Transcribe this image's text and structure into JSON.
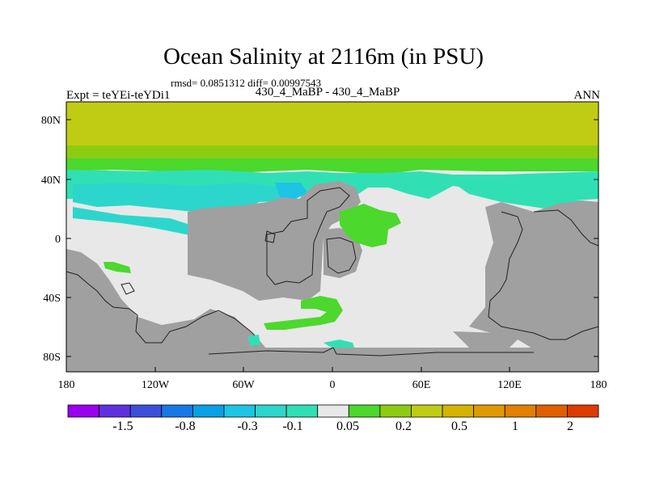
{
  "title": "Ocean Salinity at 2116m (in PSU)",
  "stats": "rmsd= 0.0851312 diff= 0.00997543",
  "left_label": "Expt = teYEi-teYDi1",
  "center_label": "430_4_MaBP - 430_4_MaBP",
  "right_label": "ANN",
  "map": {
    "lat_ticks": [
      "80N",
      "40N",
      "0",
      "40S",
      "80S"
    ],
    "lon_ticks": [
      "180",
      "120W",
      "60W",
      "0",
      "60E",
      "120E",
      "180"
    ],
    "land_color": "#a0a0a0",
    "neutral_color": "#e8e8e8"
  },
  "colorbar": {
    "colors": [
      "#9a00f0",
      "#6030e0",
      "#3c50d8",
      "#1878e6",
      "#0aa0e6",
      "#1ec4e6",
      "#2cd6cc",
      "#30e0b4",
      "#e8e8e8",
      "#4cd82c",
      "#8ccc10",
      "#c0cc14",
      "#d4b400",
      "#e09a00",
      "#e48000",
      "#e06000",
      "#dc3c00"
    ],
    "labels": [
      "-1.5",
      "-0.8",
      "-0.3",
      "-0.1",
      "0.05",
      "0.2",
      "0.5",
      "1",
      "2"
    ]
  }
}
